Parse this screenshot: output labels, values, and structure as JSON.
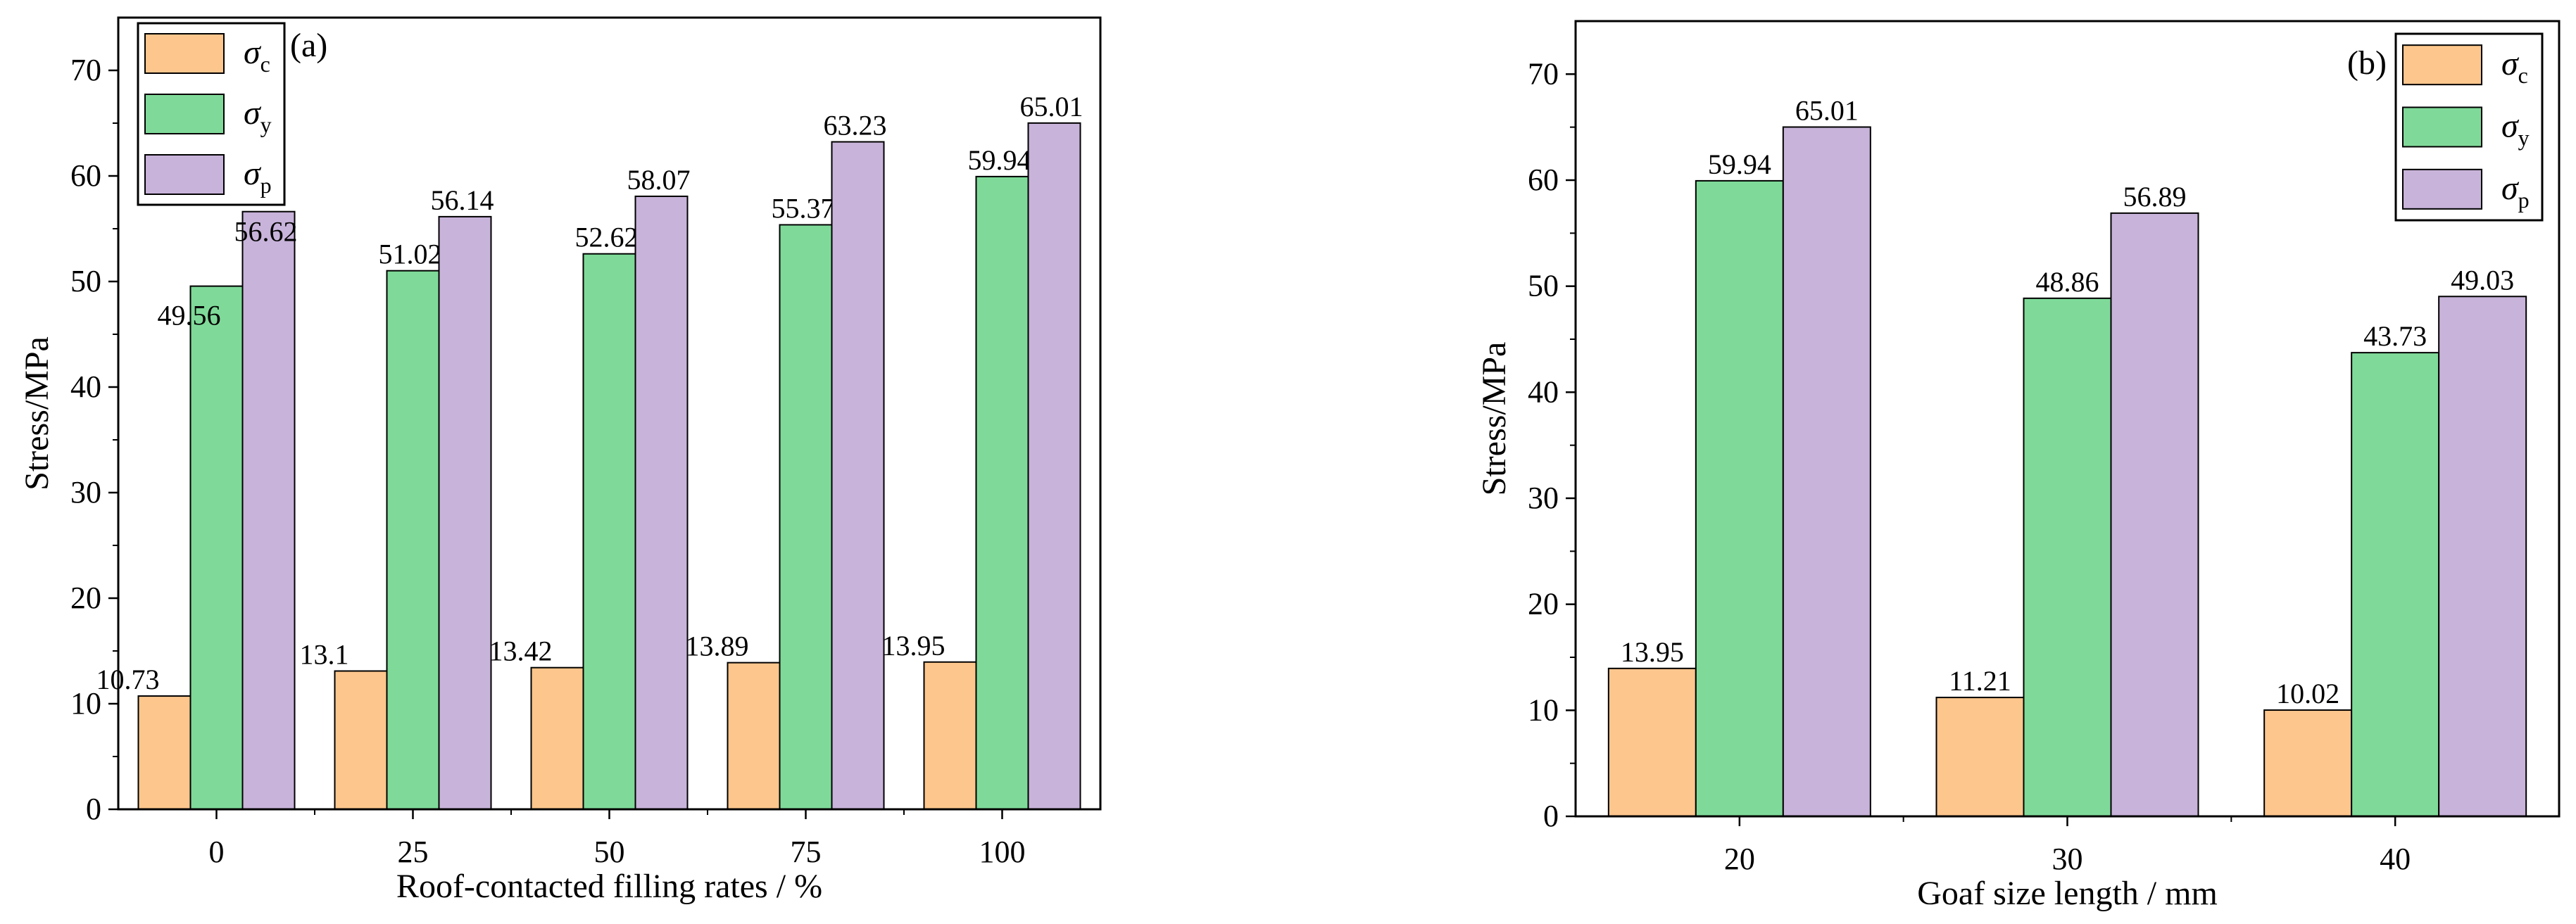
{
  "colors": {
    "sigma_c": "#FDC68C",
    "sigma_y": "#7FDA99",
    "sigma_p": "#C8B3DA",
    "axis": "#000000"
  },
  "legend_labels": [
    {
      "symbol": "σ",
      "sub": "c"
    },
    {
      "symbol": "σ",
      "sub": "y"
    },
    {
      "symbol": "σ",
      "sub": "p"
    }
  ],
  "chart_data": [
    {
      "type": "bar",
      "panel_label": "(a)",
      "title": "",
      "xlabel": "Roof-contacted filling rates / %",
      "ylabel": "Stress/MPa",
      "categories": [
        "0",
        "25",
        "50",
        "75",
        "100"
      ],
      "ylim": [
        0,
        75
      ],
      "yticks": [
        "0",
        "10",
        "20",
        "30",
        "40",
        "50",
        "60",
        "70"
      ],
      "legend_position": "top-left",
      "series": [
        {
          "name": "σc",
          "values": [
            10.73,
            13.1,
            13.42,
            13.89,
            13.95
          ],
          "labels": [
            "10.73",
            "13.1",
            "13.42",
            "13.89",
            "13.95"
          ]
        },
        {
          "name": "σy",
          "values": [
            49.56,
            51.02,
            52.62,
            55.37,
            59.94
          ],
          "labels": [
            "49.56",
            "51.02",
            "52.62",
            "55.37",
            "59.94"
          ]
        },
        {
          "name": "σp",
          "values": [
            56.62,
            56.14,
            58.07,
            63.23,
            65.01
          ],
          "labels": [
            "56.62",
            "56.14",
            "58.07",
            "63.23",
            "65.01"
          ]
        }
      ]
    },
    {
      "type": "bar",
      "panel_label": "(b)",
      "title": "",
      "xlabel": "Goaf size length / mm",
      "ylabel": "Stress/MPa",
      "categories": [
        "20",
        "30",
        "40"
      ],
      "ylim": [
        0,
        75
      ],
      "yticks": [
        "0",
        "10",
        "20",
        "30",
        "40",
        "50",
        "60",
        "70"
      ],
      "legend_position": "top-right",
      "series": [
        {
          "name": "σc",
          "values": [
            13.95,
            11.21,
            10.02
          ],
          "labels": [
            "13.95",
            "11.21",
            "10.02"
          ]
        },
        {
          "name": "σy",
          "values": [
            59.94,
            48.86,
            43.73
          ],
          "labels": [
            "59.94",
            "48.86",
            "43.73"
          ]
        },
        {
          "name": "σp",
          "values": [
            65.01,
            56.89,
            49.03
          ],
          "labels": [
            "65.01",
            "56.89",
            "49.03"
          ]
        }
      ]
    }
  ]
}
